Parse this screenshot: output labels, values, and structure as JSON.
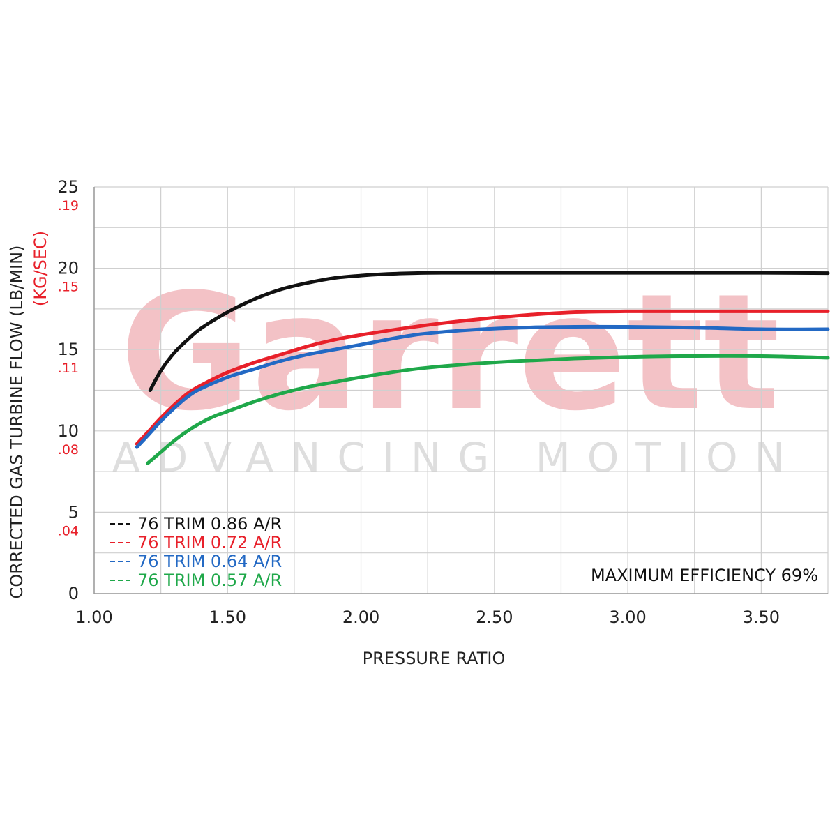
{
  "chart_data": {
    "type": "line",
    "xlabel": "PRESSURE RATIO",
    "ylabel": "CORRECTED GAS TURBINE FLOW (LB/MIN)",
    "ylabel_secondary": "(KG/SEC)",
    "xlim": [
      1.0,
      3.75
    ],
    "ylim": [
      0,
      25
    ],
    "grid": true,
    "x_ticks": [
      "1.00",
      "1.50",
      "2.00",
      "2.50",
      "3.00",
      "3.50"
    ],
    "y_ticks": [
      "0",
      "5",
      "10",
      "15",
      "20",
      "25"
    ],
    "y_ticks_secondary": [
      ".04",
      ".08",
      ".11",
      ".15",
      ".19"
    ],
    "legend_position": "bottom-left",
    "annotation": "MAXIMUM EFFICIENCY 69%",
    "watermark": {
      "brand": "Garrett",
      "tagline": "ADVANCING MOTION"
    },
    "series": [
      {
        "name": "76 TRIM 0.86 A/R",
        "color": "#111111",
        "x": [
          1.21,
          1.25,
          1.3,
          1.35,
          1.4,
          1.5,
          1.6,
          1.7,
          1.8,
          1.9,
          2.0,
          2.1,
          2.2,
          2.3,
          2.5,
          3.0,
          3.5,
          3.75
        ],
        "y": [
          12.5,
          13.7,
          14.8,
          15.6,
          16.3,
          17.3,
          18.1,
          18.7,
          19.1,
          19.4,
          19.55,
          19.65,
          19.7,
          19.72,
          19.72,
          19.72,
          19.72,
          19.7
        ]
      },
      {
        "name": "76 TRIM 0.72 A/R",
        "color": "#e8202a",
        "x": [
          1.16,
          1.2,
          1.25,
          1.3,
          1.35,
          1.4,
          1.5,
          1.6,
          1.7,
          1.8,
          1.9,
          2.0,
          2.2,
          2.4,
          2.6,
          2.8,
          3.0,
          3.5,
          3.75
        ],
        "y": [
          9.2,
          9.9,
          10.8,
          11.6,
          12.3,
          12.8,
          13.6,
          14.2,
          14.7,
          15.2,
          15.6,
          15.9,
          16.4,
          16.8,
          17.1,
          17.3,
          17.35,
          17.35,
          17.35
        ]
      },
      {
        "name": "76 TRIM 0.64 A/R",
        "color": "#2369c4",
        "x": [
          1.16,
          1.2,
          1.25,
          1.3,
          1.35,
          1.4,
          1.5,
          1.6,
          1.7,
          1.8,
          1.9,
          2.0,
          2.2,
          2.4,
          2.6,
          2.8,
          3.0,
          3.25,
          3.5,
          3.75
        ],
        "y": [
          9.0,
          9.7,
          10.6,
          11.4,
          12.1,
          12.6,
          13.3,
          13.8,
          14.3,
          14.7,
          15.0,
          15.3,
          15.9,
          16.2,
          16.35,
          16.4,
          16.4,
          16.35,
          16.25,
          16.25
        ]
      },
      {
        "name": "76 TRIM 0.57 A/R",
        "color": "#1fa84a",
        "x": [
          1.2,
          1.25,
          1.3,
          1.35,
          1.4,
          1.45,
          1.5,
          1.6,
          1.7,
          1.8,
          1.9,
          2.0,
          2.2,
          2.4,
          2.6,
          2.8,
          3.0,
          3.2,
          3.5,
          3.75
        ],
        "y": [
          8.0,
          8.7,
          9.4,
          10.0,
          10.5,
          10.9,
          11.2,
          11.8,
          12.3,
          12.7,
          13.0,
          13.3,
          13.8,
          14.1,
          14.3,
          14.45,
          14.55,
          14.6,
          14.6,
          14.5
        ]
      }
    ]
  }
}
